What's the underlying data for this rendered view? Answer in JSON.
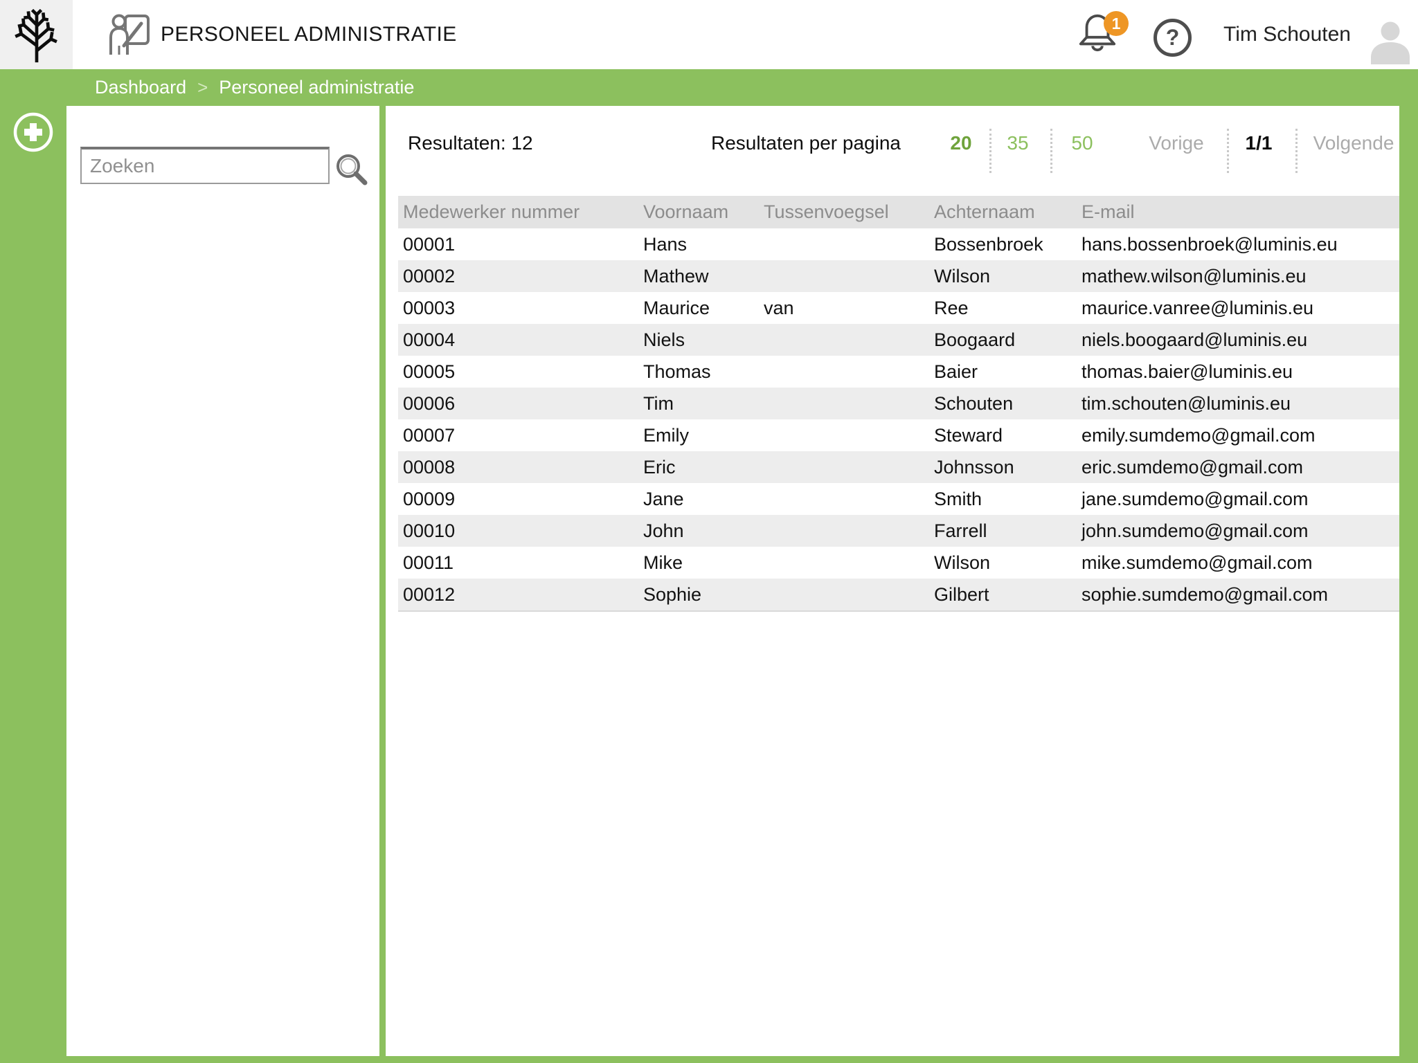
{
  "header": {
    "app_title": "PERSONEEL ADMINISTRATIE",
    "user_name": "Tim Schouten",
    "notification_count": "1",
    "help_glyph": "?"
  },
  "breadcrumb": {
    "separator": ">",
    "items": [
      "Dashboard",
      "Personeel administratie"
    ]
  },
  "sidebar": {
    "search_placeholder": "Zoeken"
  },
  "results": {
    "count_label": "Resultaten: 12",
    "per_page_label": "Resultaten per pagina",
    "page_sizes": [
      "20",
      "35",
      "50"
    ],
    "active_page_size": "20",
    "prev_label": "Vorige",
    "page_indicator": "1/1",
    "next_label": "Volgende"
  },
  "table": {
    "columns": [
      "Medewerker nummer",
      "Voornaam",
      "Tussenvoegsel",
      "Achternaam",
      "E-mail"
    ],
    "column_keys": [
      "medewerker-nummer",
      "voornaam",
      "tussenvoegsel",
      "achternaam",
      "email"
    ],
    "rows": [
      [
        "00001",
        "Hans",
        "",
        "Bossenbroek",
        "hans.bossenbroek@luminis.eu"
      ],
      [
        "00002",
        "Mathew",
        "",
        "Wilson",
        "mathew.wilson@luminis.eu"
      ],
      [
        "00003",
        "Maurice",
        "van",
        "Ree",
        "maurice.vanree@luminis.eu"
      ],
      [
        "00004",
        "Niels",
        "",
        "Boogaard",
        "niels.boogaard@luminis.eu"
      ],
      [
        "00005",
        "Thomas",
        "",
        "Baier",
        "thomas.baier@luminis.eu"
      ],
      [
        "00006",
        "Tim",
        "",
        "Schouten",
        "tim.schouten@luminis.eu"
      ],
      [
        "00007",
        "Emily",
        "",
        "Steward",
        "emily.sumdemo@gmail.com"
      ],
      [
        "00008",
        "Eric",
        "",
        "Johnsson",
        "eric.sumdemo@gmail.com"
      ],
      [
        "00009",
        "Jane",
        "",
        "Smith",
        "jane.sumdemo@gmail.com"
      ],
      [
        "00010",
        "John",
        "",
        "Farrell",
        "john.sumdemo@gmail.com"
      ],
      [
        "00011",
        "Mike",
        "",
        "Wilson",
        "mike.sumdemo@gmail.com"
      ],
      [
        "00012",
        "Sophie",
        "",
        "Gilbert",
        "sophie.sumdemo@gmail.com"
      ]
    ]
  },
  "icons": {
    "logo": "tree-icon",
    "title": "person-presenting-icon",
    "notification": "bell-icon",
    "help": "question-mark-icon",
    "user": "avatar-icon",
    "add": "plus-icon",
    "search": "magnifier-icon"
  },
  "colors": {
    "accent_green": "#8CC05E",
    "active_green": "#6FA33C",
    "badge_orange": "#EE9625",
    "table_header_bg": "#E3E3E3",
    "row_stripe_bg": "#EDEDED",
    "muted_gray": "#ABABAB"
  }
}
